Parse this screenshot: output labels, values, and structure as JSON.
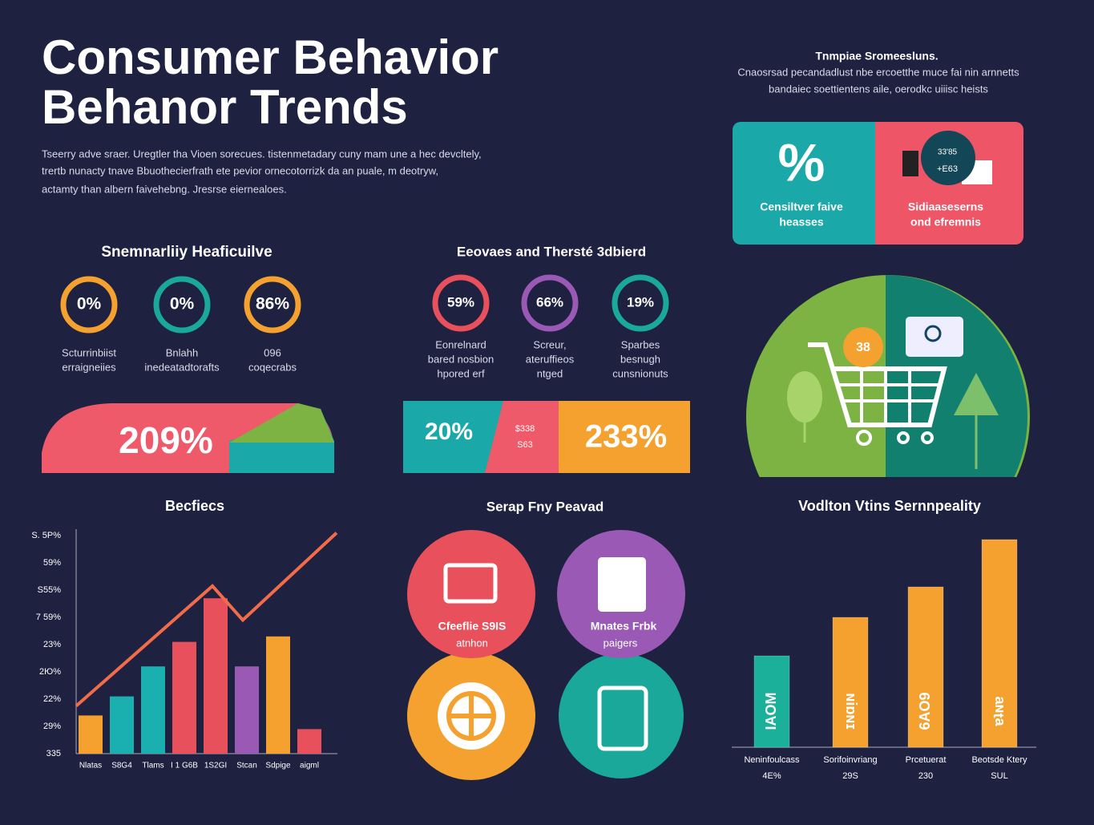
{
  "header": {
    "title_lines": [
      "Consumer Behavior",
      "Behanor Trends"
    ],
    "intro_lines": [
      "Tseerry adve sraer.  Uregtler tha  Vioen sorecues. tistenmetadary cuny mam une a hec devcltely,",
      "trertb  nunacty tnave Bbuothecierfrath ete pevior ornecotorrizk da an puale, m deotryw,",
      "actamty than albern faivehebng. Jresrse eiernealoes."
    ]
  },
  "top_right": {
    "title": "Tnmpiae Sromeesluns.",
    "lines": [
      "Cnaosrsad pecandadlust nbe ercoetthe muce fai nin arnnetts",
      "bandaiec soettientens aile, oerodkc uiiisc heists"
    ],
    "card_left": {
      "symbol": "%",
      "label_lines": [
        "Censiltver faive",
        "heasses"
      ]
    },
    "card_right": {
      "bubble_lines": [
        "33'85",
        "+E63"
      ],
      "label_lines": [
        "Sidiaaseserns",
        "ond efremnis"
      ]
    }
  },
  "panel1": {
    "title": "Snemnarliiy Heaficuilve",
    "rings": [
      {
        "value": "0%",
        "label_lines": [
          "Scturrinbiist",
          "erraigneiies"
        ]
      },
      {
        "value": "0%",
        "label_lines": [
          "Bnlahh",
          "inedeatadtorafts"
        ]
      },
      {
        "value": "86%",
        "label_lines": [
          "096",
          "coqecrabs"
        ]
      }
    ],
    "banner": "209%"
  },
  "panel2": {
    "title": "Eeovaes and Thersté 3dbierd",
    "rings": [
      {
        "value": "59%",
        "label_lines": [
          "Eonrelnard",
          "bared nosbion",
          "hpored erf"
        ]
      },
      {
        "value": "66%",
        "label_lines": [
          "Screur,",
          "ateruffieos",
          "ntged"
        ]
      },
      {
        "value": "19%",
        "label_lines": [
          "Sparbes",
          "besnugh",
          "cunsnionuts"
        ]
      }
    ],
    "banner": {
      "left": "20%",
      "mid_lines": [
        "$338",
        "S63"
      ],
      "right": "233%"
    }
  },
  "hero": {
    "badge": "38"
  },
  "chart_left": {
    "type": "bar",
    "title": "Becfiecs",
    "categories": [
      "Nlatas",
      "S8G4",
      "Tlams",
      "I 1 G6B",
      "1S2GI",
      "Stcan",
      "Sdpige",
      "aigml"
    ],
    "values": [
      1.4,
      2.1,
      3.2,
      4.1,
      5.7,
      3.2,
      4.3,
      0.9
    ],
    "colors": [
      "#f4a12f",
      "#1ab0b0",
      "#1ab0b0",
      "#e8505b",
      "#e8505b",
      "#9b59b6",
      "#f4a12f",
      "#e8505b"
    ],
    "ylim": [
      0,
      8
    ],
    "yticks": [
      {
        "value": 0,
        "label": "335"
      },
      {
        "value": 1,
        "label": "29%"
      },
      {
        "value": 2,
        "label": "22%"
      },
      {
        "value": 3,
        "label": "2Ю%"
      },
      {
        "value": 4,
        "label": "23%"
      },
      {
        "value": 5,
        "label": "7 59%"
      },
      {
        "value": 6,
        "label": "S55%"
      },
      {
        "value": 7,
        "label": "59%"
      },
      {
        "value": 8,
        "label": "S. 5P%"
      }
    ],
    "trend": {
      "color": "#f26b4a",
      "x": [
        -0.46,
        3.9,
        4.87,
        7.87
      ],
      "values": [
        1.75,
        6.15,
        4.9,
        8.1
      ]
    }
  },
  "icons_panel": {
    "title": "Serap Fny Peavad",
    "circles": [
      {
        "label_lines": [
          "Cfeeflie S9IS",
          "atnhon"
        ]
      },
      {
        "label_lines": [
          "Mnates Frbk",
          "paigers"
        ]
      }
    ]
  },
  "chart_right": {
    "type": "bar",
    "title": "Vodlton Vtins Sernnpeality",
    "ylim": [
      0,
      300
    ],
    "bars": [
      {
        "inner": "IAOM",
        "label": "Neninfoulcass",
        "sub": "4E%",
        "value": 114,
        "color": "#1ab09a"
      },
      {
        "inner": "ɪɴɑᴉɴ",
        "label": "Sorifoinvriang",
        "sub": "29S",
        "value": 162,
        "color": "#f4a12f"
      },
      {
        "inner": "6AO9",
        "label": "Prcetuerat",
        "sub": "230",
        "value": 200,
        "color": "#f4a12f"
      },
      {
        "inner": "ɐʇɴɐ",
        "label": "Beotsde Ktery",
        "sub": "SUL",
        "value": 259,
        "color": "#f4a12f"
      }
    ]
  }
}
